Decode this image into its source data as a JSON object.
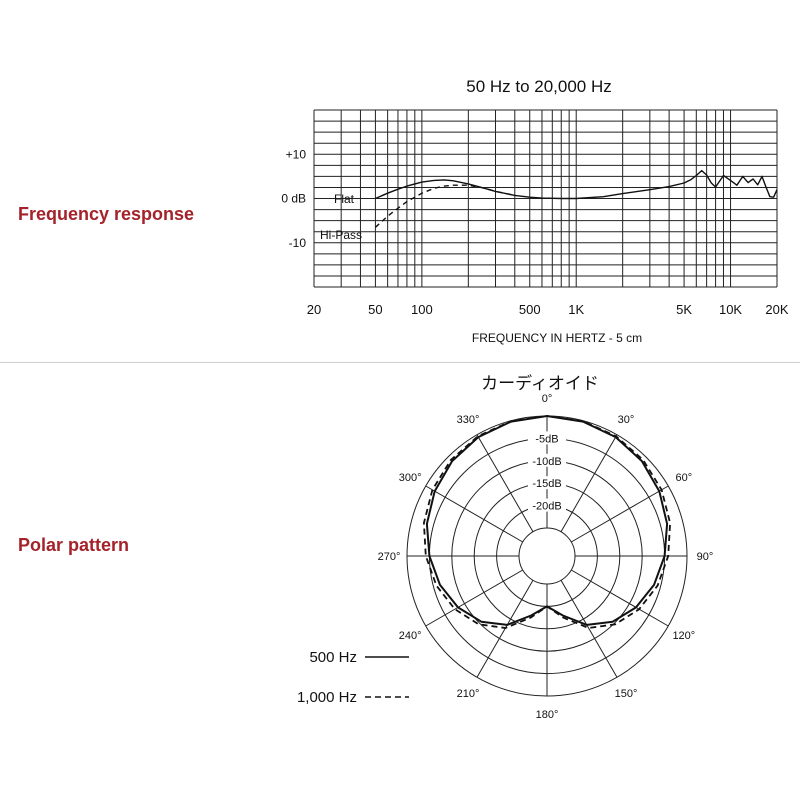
{
  "sections": {
    "frequency_response": "Frequency response",
    "polar_pattern": "Polar pattern"
  },
  "colors": {
    "section_label": "#a4222a",
    "grid": "#222222",
    "curve": "#111111",
    "divider": "#cfcfcf"
  },
  "chart_data": [
    {
      "type": "line",
      "title": "50 Hz to 20,000 Hz",
      "xlabel": "FREQUENCY IN HERTZ - 5 cm",
      "ylabel": "",
      "x_scale": "log",
      "xlim": [
        20,
        20000
      ],
      "ylim": [
        -20,
        20
      ],
      "x_tick_labels": [
        {
          "value": 20,
          "label": "20"
        },
        {
          "value": 50,
          "label": "50"
        },
        {
          "value": 100,
          "label": "100"
        },
        {
          "value": 500,
          "label": "500"
        },
        {
          "value": 1000,
          "label": "1K"
        },
        {
          "value": 5000,
          "label": "5K"
        },
        {
          "value": 10000,
          "label": "10K"
        },
        {
          "value": 20000,
          "label": "20K"
        }
      ],
      "y_tick_labels": [
        {
          "value": 10,
          "label": "+10"
        },
        {
          "value": 0,
          "label": "0 dB"
        },
        {
          "value": -10,
          "label": "-10"
        }
      ],
      "grid": true,
      "series": [
        {
          "name": "Flat",
          "style": "solid",
          "x": [
            50,
            60,
            70,
            80,
            100,
            120,
            140,
            160,
            200,
            250,
            300,
            400,
            500,
            600,
            800,
            1000,
            1500,
            2000,
            3000,
            4000,
            5000,
            5500,
            6000,
            6500,
            7000,
            7500,
            8000,
            9000,
            10000,
            11000,
            12000,
            13000,
            14000,
            15000,
            16000,
            17000,
            18000,
            19000,
            20000
          ],
          "y": [
            0,
            1.2,
            2.1,
            2.8,
            3.7,
            4.1,
            4.2,
            4.0,
            3.3,
            2.4,
            1.6,
            0.7,
            0.3,
            0.1,
            0,
            0,
            0.4,
            1.1,
            2.0,
            2.7,
            3.5,
            4.2,
            5.2,
            6.3,
            5.3,
            3.5,
            2.6,
            5.2,
            4.1,
            3.0,
            5.0,
            3.6,
            4.4,
            3.1,
            5.0,
            2.5,
            0.4,
            0.3,
            2.0
          ]
        },
        {
          "name": "Hi-Pass",
          "style": "dashed",
          "x": [
            50,
            60,
            70,
            80,
            100,
            120,
            140,
            160,
            200,
            250,
            300,
            400
          ],
          "y": [
            -6.5,
            -4.0,
            -2.2,
            -0.7,
            1.2,
            2.3,
            2.8,
            3.0,
            3.0,
            2.4,
            1.6,
            0.7
          ]
        }
      ],
      "annotations": [
        "Flat",
        "Hi-Pass"
      ]
    },
    {
      "type": "polar",
      "title": "カーディオイド",
      "angle_labels": [
        {
          "deg": 0,
          "label": "0°"
        },
        {
          "deg": 30,
          "label": "30°"
        },
        {
          "deg": 60,
          "label": "60°"
        },
        {
          "deg": 90,
          "label": "90°"
        },
        {
          "deg": 120,
          "label": "120°"
        },
        {
          "deg": 150,
          "label": "150°"
        },
        {
          "deg": 180,
          "label": "180°"
        },
        {
          "deg": 210,
          "label": "210°"
        },
        {
          "deg": 240,
          "label": "240°"
        },
        {
          "deg": 270,
          "label": "270°"
        },
        {
          "deg": 300,
          "label": "300°"
        },
        {
          "deg": 330,
          "label": "330°"
        }
      ],
      "r_range_db": [
        -25,
        0
      ],
      "ring_labels": [
        {
          "db": -5,
          "label": "-5dB"
        },
        {
          "db": -10,
          "label": "-10dB"
        },
        {
          "db": -15,
          "label": "-15dB"
        },
        {
          "db": -20,
          "label": "-20dB"
        }
      ],
      "series": [
        {
          "name": "500 Hz",
          "legend": "500 Hz",
          "style": "solid",
          "angle_deg": [
            0,
            15,
            30,
            45,
            60,
            75,
            90,
            105,
            120,
            135,
            150,
            165,
            180
          ],
          "db": [
            0,
            -0.2,
            -0.6,
            -1.3,
            -2.3,
            -3.5,
            -5.0,
            -6.5,
            -8.3,
            -10.5,
            -13.5,
            -17.5,
            -20.0
          ]
        },
        {
          "name": "1,000 Hz",
          "legend": "1,000 Hz",
          "style": "dashed",
          "angle_deg": [
            0,
            15,
            30,
            45,
            60,
            75,
            90,
            105,
            120,
            135,
            150,
            165,
            180
          ],
          "db": [
            0,
            -0.1,
            -0.4,
            -0.9,
            -1.7,
            -2.8,
            -4.2,
            -5.7,
            -7.5,
            -9.7,
            -12.7,
            -17.0,
            -20.0
          ]
        }
      ]
    }
  ]
}
